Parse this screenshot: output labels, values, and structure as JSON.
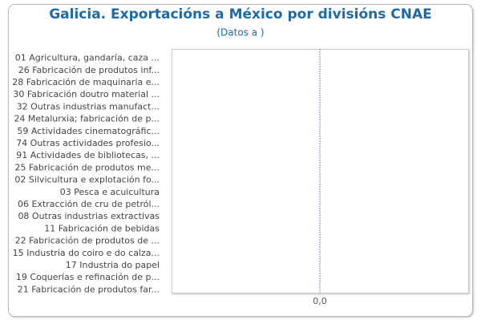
{
  "chart_data": {
    "type": "bar",
    "orientation": "horizontal",
    "title": "Galicia. Exportacións a México por divisións CNAE",
    "subtitle": "(Datos a )",
    "categories": [
      "01 Agricultura, gandaría, caza ...",
      "26 Fabricación de produtos inf...",
      "28 Fabricación de maquinaria e...",
      "30 Fabricación doutro material ...",
      "32 Outras industrias manufact...",
      "24 Metalurxia; fabricación de p...",
      "59 Actividades cinematográfic...",
      "74 Outras actividades profesio...",
      "91 Actividades de bibliotecas, ...",
      "25 Fabricación de produtos me...",
      "02 Silvicultura e explotación fo...",
      "03 Pesca e acuicultura",
      "06 Extracción de cru de petról...",
      "08 Outras industrias extractivas",
      "11 Fabricación de bebidas",
      "22 Fabricación de produtos de ...",
      "15 Industria do coiro e do calza...",
      "17 Industria do papel",
      "19 Coquerías e refinación de p...",
      "21 Fabricación de produtos far..."
    ],
    "values": [
      0,
      0,
      0,
      0,
      0,
      0,
      0,
      0,
      0,
      0,
      0,
      0,
      0,
      0,
      0,
      0,
      0,
      0,
      0,
      0
    ],
    "color": "#2b7bb9",
    "xlim": [
      -1,
      1
    ],
    "xticks": [
      {
        "value": 0,
        "label": "0,0"
      }
    ]
  }
}
